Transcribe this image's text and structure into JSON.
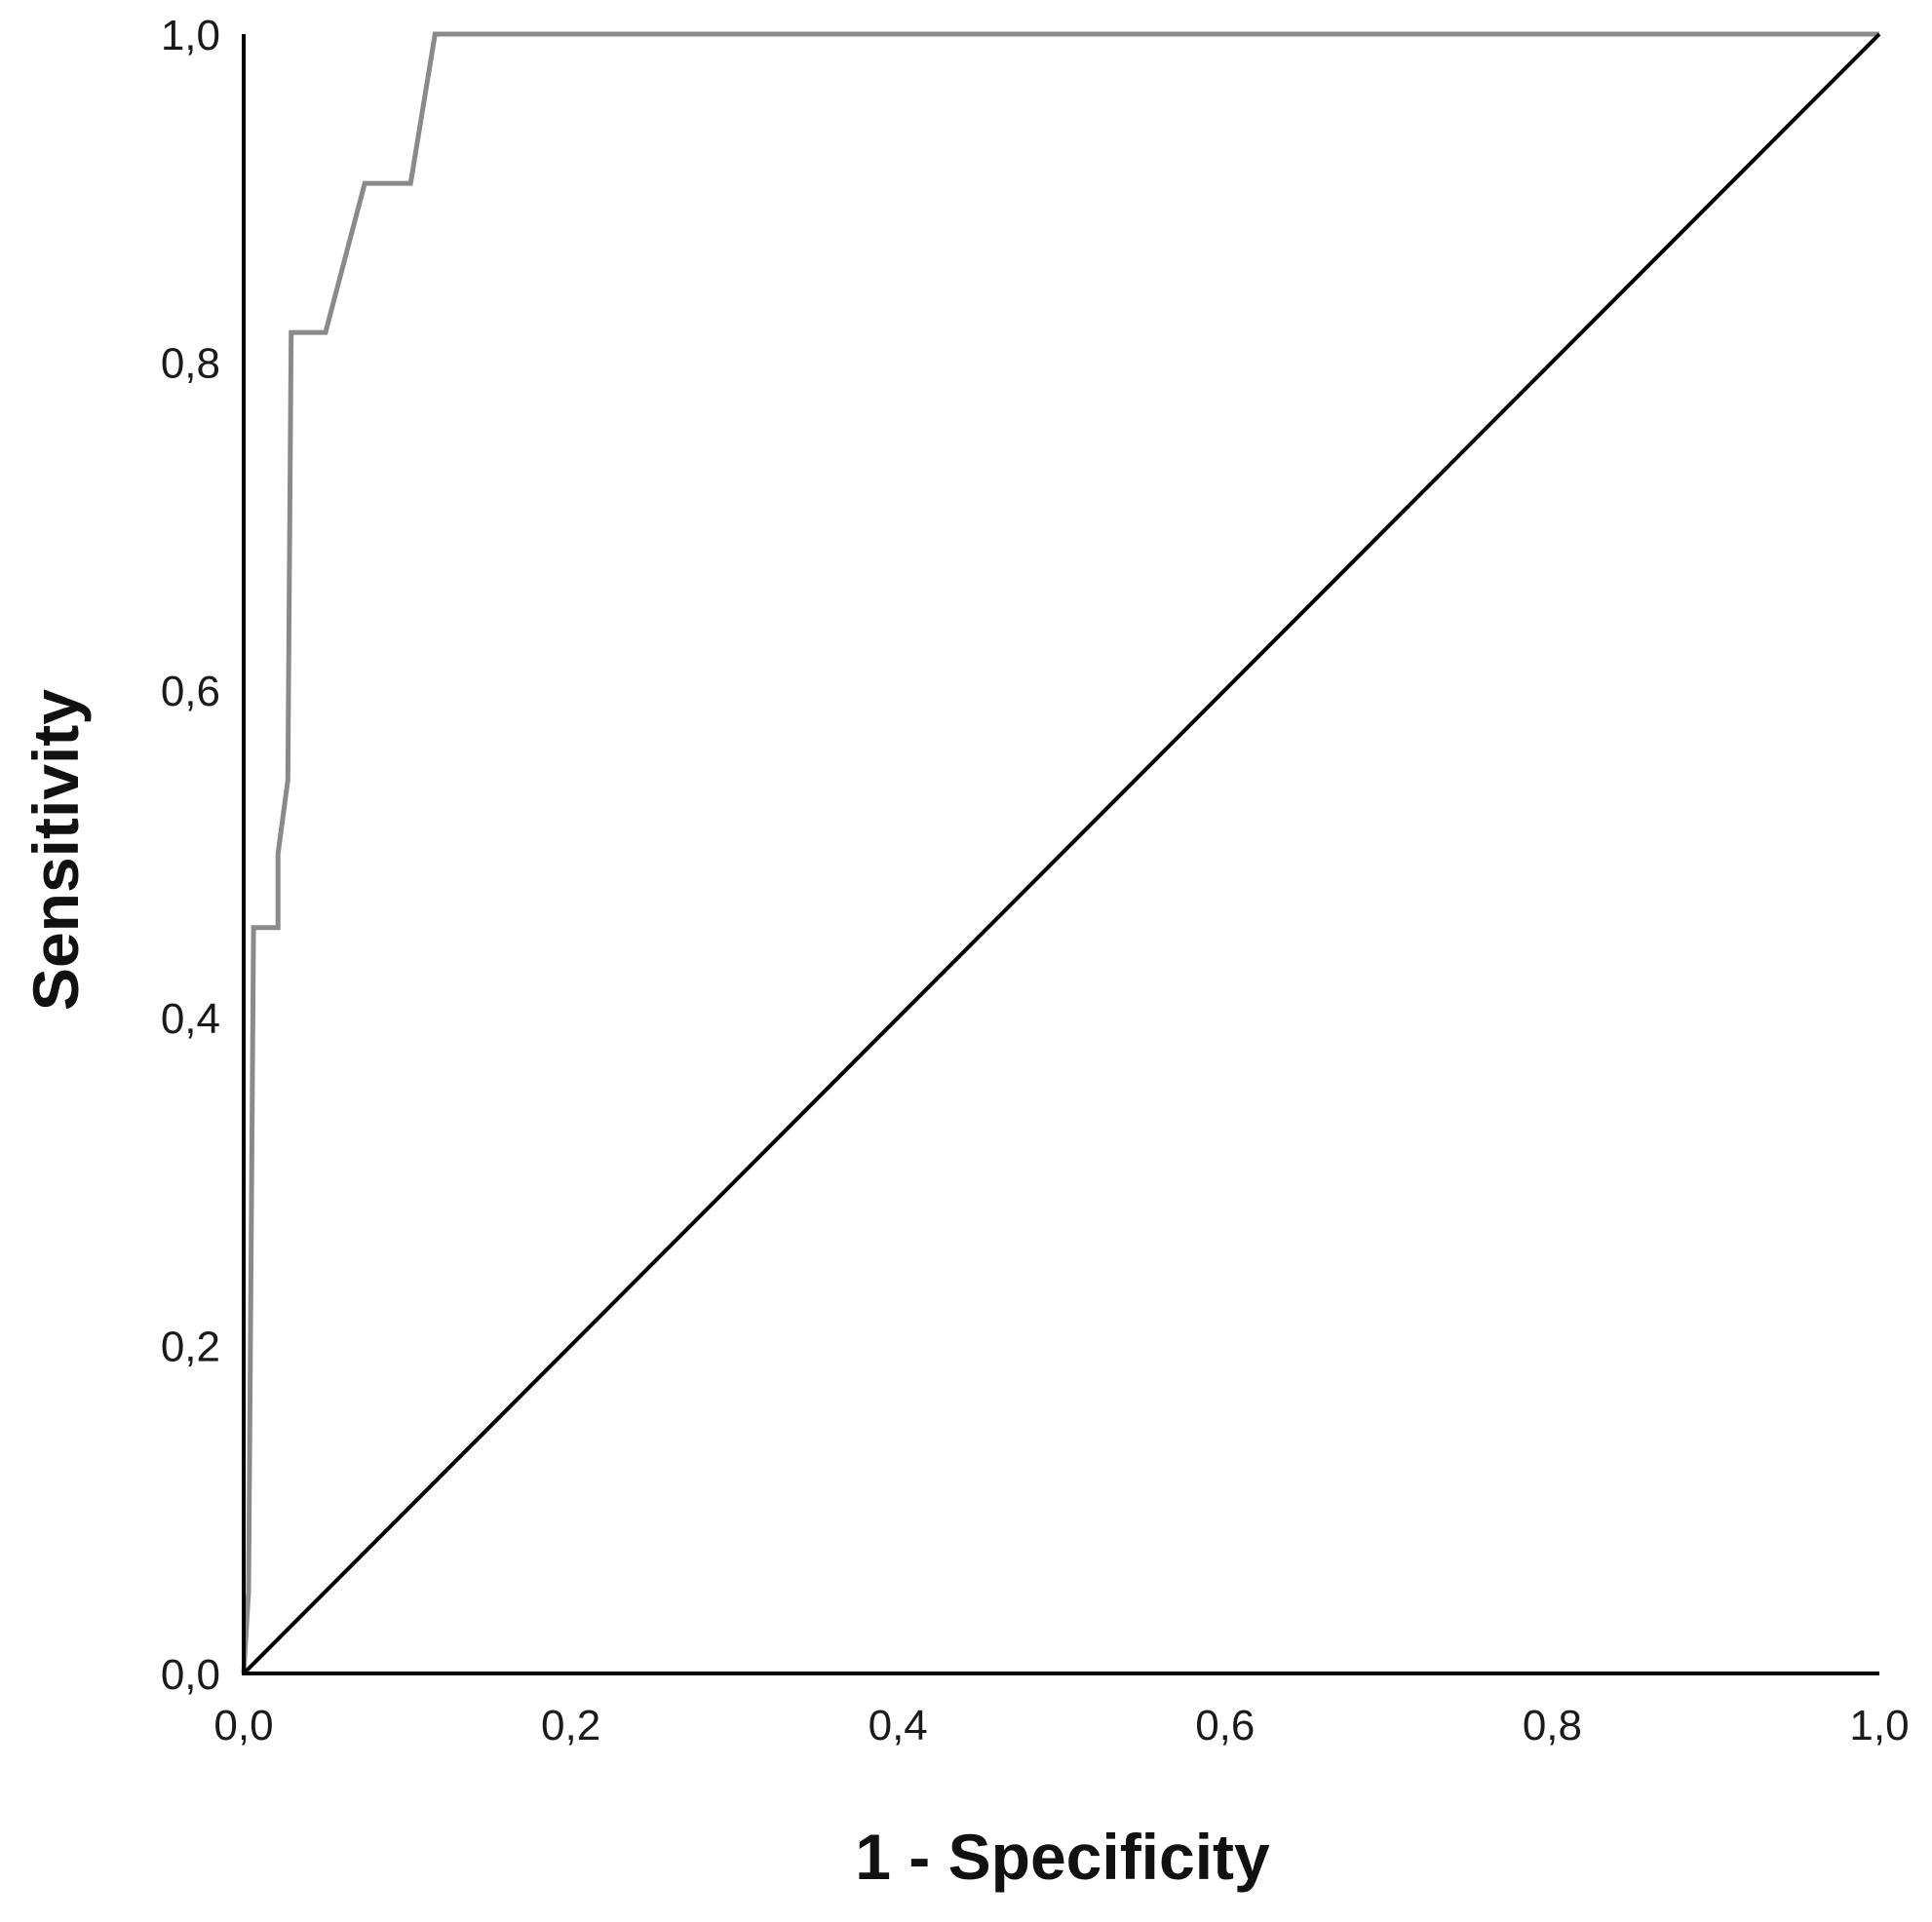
{
  "chart_data": {
    "type": "line",
    "xlabel": "1 - Specificity",
    "ylabel": "Sensitivity",
    "xlim": [
      0,
      1
    ],
    "ylim": [
      0,
      1
    ],
    "x_ticks": [
      "0,0",
      "0,2",
      "0,4",
      "0,6",
      "0,8",
      "1,0"
    ],
    "y_ticks": [
      "0,0",
      "0,2",
      "0,4",
      "0,6",
      "0,8",
      "1,0"
    ],
    "grid": false,
    "series": [
      {
        "color": "#8a8a8a",
        "style": "step",
        "x": [
          0.0,
          0.003,
          0.006,
          0.006,
          0.021,
          0.021,
          0.027,
          0.029,
          0.029,
          0.05,
          0.05,
          0.074,
          0.074,
          0.102,
          0.102,
          0.117,
          0.117,
          1.0
        ],
        "y": [
          0.0,
          0.05,
          0.455,
          0.455,
          0.455,
          0.5,
          0.545,
          0.818,
          0.818,
          0.818,
          0.818,
          0.909,
          0.909,
          0.909,
          0.909,
          1.0,
          1.0,
          1.0
        ]
      },
      {
        "color": "#000000",
        "style": "reference",
        "x": [
          0.0,
          1.0
        ],
        "y": [
          0.0,
          1.0
        ]
      }
    ]
  }
}
